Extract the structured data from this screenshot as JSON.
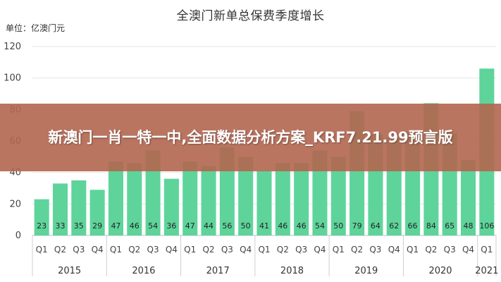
{
  "chart_data": {
    "type": "bar",
    "title": "全澳门新单总保费季度增长",
    "unit_label": "单位：亿澳门元",
    "yticks": [
      0,
      20,
      40,
      60,
      80,
      100,
      120
    ],
    "ylim": [
      0,
      120
    ],
    "grid": true,
    "quarter_labels": [
      "Q1",
      "Q2",
      "Q3",
      "Q4",
      "Q1",
      "Q2",
      "Q3",
      "Q4",
      "Q1",
      "Q2",
      "Q3",
      "Q4",
      "Q1",
      "Q2",
      "Q3",
      "Q4",
      "Q1",
      "Q2",
      "Q3",
      "Q4",
      "Q1",
      "Q2",
      "Q3",
      "Q4",
      "Q1"
    ],
    "years": [
      "2015",
      "2016",
      "2017",
      "2018",
      "2019",
      "2020",
      "2021"
    ],
    "values": [
      23,
      33,
      35,
      29,
      47,
      46,
      54,
      36,
      47,
      44,
      56,
      50,
      41,
      46,
      46,
      54,
      50,
      79,
      64,
      62,
      66,
      84,
      65,
      48,
      106
    ],
    "bar_color": "#5ed49b"
  },
  "overlay": {
    "headline": "新澳门一肖一特一中,全面数据分析方案_KRF7.21.99预言版"
  }
}
